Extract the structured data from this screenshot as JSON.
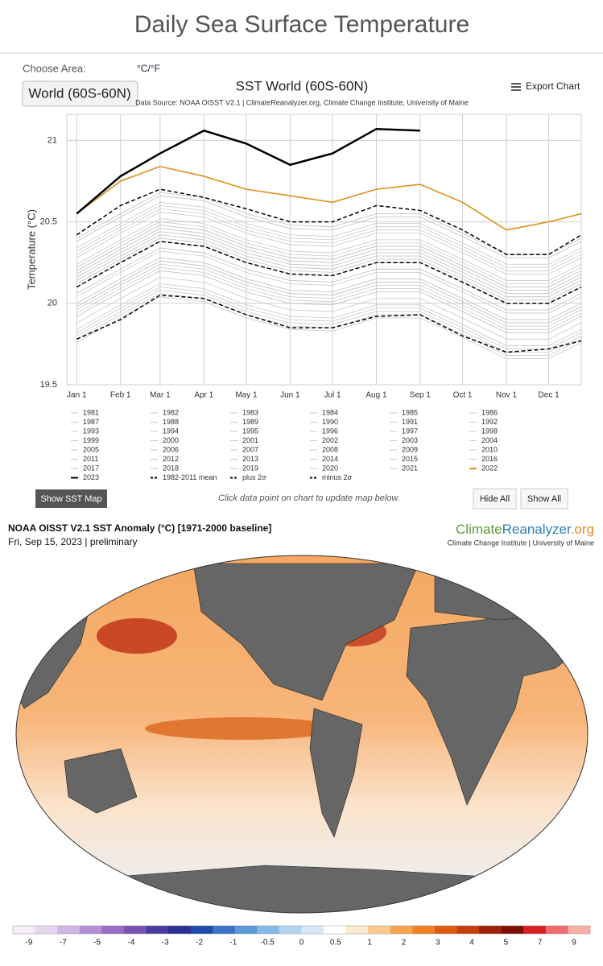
{
  "page": {
    "title": "Daily Sea Surface Temperature",
    "area_label": "Choose Area:",
    "unit_toggle": "°C/°F",
    "area_button": "World (60S-60N)",
    "export": "Export Chart",
    "show_map": "Show SST Map",
    "hint": "Click data point on chart to update map below.",
    "hide_all": "Hide All",
    "show_all": "Show All"
  },
  "chart_data": {
    "type": "line",
    "title": "SST World (60S-60N)",
    "subtitle": "Data Source: NOAA OISST V2.1 | ClimateReanalyzer.org, Climate Change Institute, University of Maine",
    "y_label": "Temperature (°C)",
    "x": [
      1,
      32,
      60,
      91,
      121,
      152,
      182,
      213,
      244,
      274,
      305,
      335,
      358
    ],
    "xlim": [
      -6,
      358
    ],
    "xticks": [
      {
        "value": 1,
        "label": "Jan 1"
      },
      {
        "value": 32,
        "label": "Feb 1"
      },
      {
        "value": 60,
        "label": "Mar 1"
      },
      {
        "value": 91,
        "label": "Apr 1"
      },
      {
        "value": 121,
        "label": "May 1"
      },
      {
        "value": 152,
        "label": "Jun 1"
      },
      {
        "value": 182,
        "label": "Jul 1"
      },
      {
        "value": 213,
        "label": "Aug 1"
      },
      {
        "value": 244,
        "label": "Sep 1"
      },
      {
        "value": 274,
        "label": "Oct 1"
      },
      {
        "value": 305,
        "label": "Nov 1"
      },
      {
        "value": 335,
        "label": "Dec 1"
      }
    ],
    "ylim": [
      19.5,
      21.16
    ],
    "yticks": [
      19.5,
      20,
      20.5,
      21
    ],
    "grid": true,
    "series": [
      {
        "name": "1981",
        "color": "#c8c8c8",
        "values": [
          19.82,
          19.97,
          20.1,
          20.07,
          19.97,
          19.9,
          19.89,
          19.97,
          19.97,
          19.85,
          19.72,
          19.72,
          19.82
        ]
      },
      {
        "name": "1982",
        "color": "#c8c8c8",
        "values": [
          19.8,
          19.95,
          20.08,
          20.05,
          19.95,
          19.88,
          19.87,
          19.95,
          19.95,
          19.83,
          19.7,
          19.7,
          19.8
        ]
      },
      {
        "name": "1983",
        "color": "#c8c8c8",
        "values": [
          19.92,
          20.07,
          20.2,
          20.17,
          20.07,
          20.0,
          19.99,
          20.07,
          20.07,
          19.95,
          19.82,
          19.82,
          19.92
        ]
      },
      {
        "name": "1984",
        "color": "#c8c8c8",
        "values": [
          19.78,
          19.93,
          20.06,
          20.03,
          19.93,
          19.86,
          19.85,
          19.93,
          19.93,
          19.81,
          19.68,
          19.68,
          19.78
        ]
      },
      {
        "name": "1985",
        "color": "#c8c8c8",
        "values": [
          19.76,
          19.91,
          20.04,
          20.01,
          19.91,
          19.84,
          19.83,
          19.91,
          19.91,
          19.79,
          19.66,
          19.66,
          19.76
        ]
      },
      {
        "name": "1986",
        "color": "#c8c8c8",
        "values": [
          19.84,
          19.99,
          20.12,
          20.09,
          19.99,
          19.92,
          19.91,
          19.99,
          19.99,
          19.87,
          19.74,
          19.74,
          19.84
        ]
      },
      {
        "name": "1987",
        "color": "#c8c8c8",
        "values": [
          19.98,
          20.13,
          20.26,
          20.23,
          20.13,
          20.06,
          20.05,
          20.13,
          20.13,
          20.01,
          19.88,
          19.88,
          19.98
        ]
      },
      {
        "name": "1988",
        "color": "#c8c8c8",
        "values": [
          19.94,
          20.09,
          20.22,
          20.19,
          20.09,
          20.02,
          20.01,
          20.09,
          20.09,
          19.97,
          19.84,
          19.84,
          19.94
        ]
      },
      {
        "name": "1989",
        "color": "#c8c8c8",
        "values": [
          19.88,
          20.03,
          20.16,
          20.13,
          20.03,
          19.96,
          19.95,
          20.03,
          20.03,
          19.91,
          19.78,
          19.78,
          19.88
        ]
      },
      {
        "name": "1990",
        "color": "#c8c8c8",
        "values": [
          20.0,
          20.15,
          20.28,
          20.25,
          20.15,
          20.08,
          20.07,
          20.15,
          20.15,
          20.03,
          19.9,
          19.9,
          20.0
        ]
      },
      {
        "name": "1991",
        "color": "#c8c8c8",
        "values": [
          19.98,
          20.13,
          20.26,
          20.23,
          20.13,
          20.06,
          20.05,
          20.13,
          20.13,
          20.01,
          19.88,
          19.88,
          19.98
        ]
      },
      {
        "name": "1992",
        "color": "#c8c8c8",
        "values": [
          19.92,
          20.07,
          20.2,
          20.17,
          20.07,
          20.0,
          19.99,
          20.07,
          20.07,
          19.95,
          19.82,
          19.82,
          19.92
        ]
      },
      {
        "name": "1993",
        "color": "#c8c8c8",
        "values": [
          19.96,
          20.11,
          20.24,
          20.21,
          20.11,
          20.04,
          20.03,
          20.11,
          20.11,
          19.99,
          19.86,
          19.86,
          19.96
        ]
      },
      {
        "name": "1994",
        "color": "#c8c8c8",
        "values": [
          20.0,
          20.15,
          20.28,
          20.25,
          20.15,
          20.08,
          20.07,
          20.15,
          20.15,
          20.03,
          19.9,
          19.9,
          20.0
        ]
      },
      {
        "name": "1995",
        "color": "#c8c8c8",
        "values": [
          20.04,
          20.19,
          20.32,
          20.29,
          20.19,
          20.12,
          20.11,
          20.19,
          20.19,
          20.07,
          19.94,
          19.94,
          20.04
        ]
      },
      {
        "name": "1996",
        "color": "#c8c8c8",
        "values": [
          19.98,
          20.13,
          20.26,
          20.23,
          20.13,
          20.06,
          20.05,
          20.13,
          20.13,
          20.01,
          19.88,
          19.88,
          19.98
        ]
      },
      {
        "name": "1997",
        "color": "#c8c8c8",
        "values": [
          20.12,
          20.27,
          20.4,
          20.37,
          20.27,
          20.2,
          20.19,
          20.27,
          20.27,
          20.15,
          20.02,
          20.02,
          20.12
        ]
      },
      {
        "name": "1998",
        "color": "#c8c8c8",
        "values": [
          20.2,
          20.35,
          20.48,
          20.45,
          20.35,
          20.28,
          20.27,
          20.35,
          20.35,
          20.23,
          20.1,
          20.1,
          20.2
        ]
      },
      {
        "name": "1999",
        "color": "#c8c8c8",
        "values": [
          20.06,
          20.21,
          20.34,
          20.31,
          20.21,
          20.14,
          20.13,
          20.21,
          20.21,
          20.09,
          19.96,
          19.96,
          20.06
        ]
      },
      {
        "name": "2000",
        "color": "#c8c8c8",
        "values": [
          20.06,
          20.21,
          20.34,
          20.31,
          20.21,
          20.14,
          20.13,
          20.21,
          20.21,
          20.09,
          19.96,
          19.96,
          20.06
        ]
      },
      {
        "name": "2001",
        "color": "#c8c8c8",
        "values": [
          20.14,
          20.29,
          20.42,
          20.39,
          20.29,
          20.22,
          20.21,
          20.29,
          20.29,
          20.17,
          20.04,
          20.04,
          20.14
        ]
      },
      {
        "name": "2002",
        "color": "#c8c8c8",
        "values": [
          20.16,
          20.31,
          20.44,
          20.41,
          20.31,
          20.24,
          20.23,
          20.31,
          20.31,
          20.19,
          20.06,
          20.06,
          20.16
        ]
      },
      {
        "name": "2003",
        "color": "#c8c8c8",
        "values": [
          20.18,
          20.33,
          20.46,
          20.43,
          20.33,
          20.26,
          20.25,
          20.33,
          20.33,
          20.21,
          20.08,
          20.08,
          20.18
        ]
      },
      {
        "name": "2004",
        "color": "#c8c8c8",
        "values": [
          20.16,
          20.31,
          20.44,
          20.41,
          20.31,
          20.24,
          20.23,
          20.31,
          20.31,
          20.19,
          20.06,
          20.06,
          20.16
        ]
      },
      {
        "name": "2005",
        "color": "#c8c8c8",
        "values": [
          20.2,
          20.35,
          20.48,
          20.45,
          20.35,
          20.28,
          20.27,
          20.35,
          20.35,
          20.23,
          20.1,
          20.1,
          20.2
        ]
      },
      {
        "name": "2006",
        "color": "#c8c8c8",
        "values": [
          20.18,
          20.33,
          20.46,
          20.43,
          20.33,
          20.26,
          20.25,
          20.33,
          20.33,
          20.21,
          20.08,
          20.08,
          20.18
        ]
      },
      {
        "name": "2007",
        "color": "#c8c8c8",
        "values": [
          20.12,
          20.27,
          20.4,
          20.37,
          20.27,
          20.2,
          20.19,
          20.27,
          20.27,
          20.15,
          20.02,
          20.02,
          20.12
        ]
      },
      {
        "name": "2008",
        "color": "#c8c8c8",
        "values": [
          20.1,
          20.25,
          20.38,
          20.35,
          20.25,
          20.18,
          20.17,
          20.25,
          20.25,
          20.13,
          20.0,
          20.0,
          20.1
        ]
      },
      {
        "name": "2009",
        "color": "#c8c8c8",
        "values": [
          20.2,
          20.35,
          20.48,
          20.45,
          20.35,
          20.28,
          20.27,
          20.35,
          20.35,
          20.23,
          20.1,
          20.1,
          20.2
        ]
      },
      {
        "name": "2010",
        "color": "#c8c8c8",
        "values": [
          20.24,
          20.39,
          20.52,
          20.49,
          20.39,
          20.32,
          20.31,
          20.39,
          20.39,
          20.27,
          20.14,
          20.14,
          20.24
        ]
      },
      {
        "name": "2011",
        "color": "#c8c8c8",
        "values": [
          20.14,
          20.29,
          20.42,
          20.39,
          20.29,
          20.22,
          20.21,
          20.29,
          20.29,
          20.17,
          20.04,
          20.04,
          20.14
        ]
      },
      {
        "name": "2012",
        "color": "#c8c8c8",
        "values": [
          20.2,
          20.35,
          20.48,
          20.45,
          20.35,
          20.28,
          20.27,
          20.35,
          20.35,
          20.23,
          20.1,
          20.1,
          20.2
        ]
      },
      {
        "name": "2013",
        "color": "#c8c8c8",
        "values": [
          20.22,
          20.37,
          20.5,
          20.47,
          20.37,
          20.3,
          20.29,
          20.37,
          20.37,
          20.25,
          20.12,
          20.12,
          20.22
        ]
      },
      {
        "name": "2014",
        "color": "#c8c8c8",
        "values": [
          20.28,
          20.43,
          20.56,
          20.53,
          20.43,
          20.36,
          20.35,
          20.43,
          20.43,
          20.31,
          20.18,
          20.18,
          20.28
        ]
      },
      {
        "name": "2015",
        "color": "#c8c8c8",
        "values": [
          20.38,
          20.53,
          20.66,
          20.63,
          20.53,
          20.46,
          20.45,
          20.53,
          20.53,
          20.41,
          20.28,
          20.28,
          20.38
        ]
      },
      {
        "name": "2016",
        "color": "#c8c8c8",
        "values": [
          20.4,
          20.55,
          20.68,
          20.65,
          20.55,
          20.48,
          20.47,
          20.55,
          20.55,
          20.43,
          20.3,
          20.3,
          20.4
        ]
      },
      {
        "name": "2017",
        "color": "#c8c8c8",
        "values": [
          20.34,
          20.49,
          20.62,
          20.59,
          20.49,
          20.42,
          20.41,
          20.49,
          20.49,
          20.37,
          20.24,
          20.24,
          20.34
        ]
      },
      {
        "name": "2018",
        "color": "#c8c8c8",
        "values": [
          20.3,
          20.45,
          20.58,
          20.55,
          20.45,
          20.38,
          20.37,
          20.45,
          20.45,
          20.33,
          20.2,
          20.2,
          20.3
        ]
      },
      {
        "name": "2019",
        "color": "#c8c8c8",
        "values": [
          20.4,
          20.55,
          20.68,
          20.65,
          20.55,
          20.48,
          20.47,
          20.55,
          20.55,
          20.43,
          20.3,
          20.3,
          20.4
        ]
      },
      {
        "name": "2020",
        "color": "#c8c8c8",
        "values": [
          20.38,
          20.53,
          20.66,
          20.63,
          20.53,
          20.46,
          20.45,
          20.53,
          20.53,
          20.41,
          20.28,
          20.28,
          20.38
        ]
      },
      {
        "name": "2021",
        "color": "#c8c8c8",
        "values": [
          20.32,
          20.47,
          20.6,
          20.57,
          20.47,
          20.4,
          20.39,
          20.47,
          20.47,
          20.35,
          20.22,
          20.22,
          20.32
        ]
      },
      {
        "name": "2022",
        "color": "#e08e1b",
        "values": [
          20.55,
          20.75,
          20.84,
          20.78,
          20.7,
          20.66,
          20.62,
          20.7,
          20.73,
          20.62,
          20.45,
          20.5,
          20.55
        ]
      },
      {
        "name": "2023",
        "color": "#000000",
        "values": [
          20.55,
          20.78,
          20.92,
          21.06,
          20.98,
          20.85,
          20.92,
          21.07,
          21.06,
          null,
          null,
          null,
          null
        ]
      },
      {
        "name": "1982-2011 mean",
        "color": "#000000",
        "style": "dashed",
        "values": [
          20.1,
          20.25,
          20.38,
          20.35,
          20.25,
          20.18,
          20.17,
          20.25,
          20.25,
          20.13,
          20.0,
          20.0,
          20.1
        ]
      },
      {
        "name": "plus 2σ",
        "color": "#000000",
        "style": "dashed",
        "values": [
          20.42,
          20.6,
          20.7,
          20.65,
          20.58,
          20.5,
          20.5,
          20.6,
          20.57,
          20.45,
          20.3,
          20.3,
          20.42
        ]
      },
      {
        "name": "minus 2σ",
        "color": "#000000",
        "style": "dashed",
        "values": [
          19.78,
          19.9,
          20.05,
          20.03,
          19.93,
          19.85,
          19.85,
          19.92,
          19.93,
          19.8,
          19.7,
          19.72,
          19.77
        ]
      }
    ]
  },
  "map": {
    "title": "NOAA OISST V2.1 SST Anomaly (°C) [1971-2000 baseline]",
    "date": "Fri, Sep 15, 2023 | preliminary",
    "logo": [
      "Climate",
      "Reanalyzer",
      ".org"
    ],
    "logo_sub": "Climate Change Institute | University of Maine",
    "colorbar": {
      "ticks": [
        -9,
        -7,
        -5,
        -4,
        -3,
        -2,
        -1,
        -0.5,
        0,
        0.5,
        1,
        2,
        3,
        4,
        5,
        7,
        9
      ],
      "colors": [
        "#f5eef8",
        "#e6d6ef",
        "#cfb5e2",
        "#b48fd3",
        "#9a6ec4",
        "#7652b2",
        "#4b3a9e",
        "#2a2f92",
        "#2149a8",
        "#3a72c4",
        "#5b98d8",
        "#86b8e6",
        "#b3d3f0",
        "#d8e8f7",
        "#ffffff",
        "#fde9cf",
        "#fbc98d",
        "#f7a44e",
        "#ee8122",
        "#dd5c12",
        "#c43d0c",
        "#a01f08",
        "#7e0d06",
        "#d91f1f",
        "#f06b6b",
        "#f8b0a5"
      ]
    }
  }
}
